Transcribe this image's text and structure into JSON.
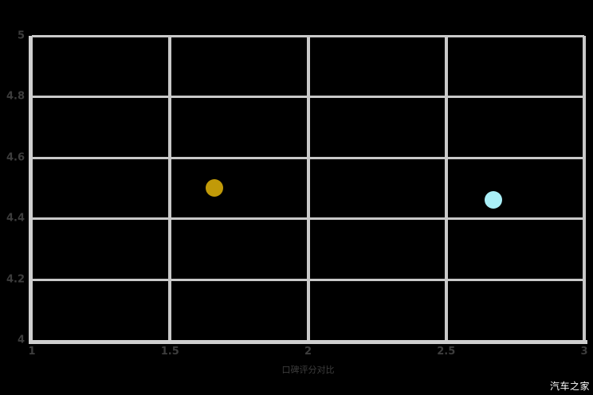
{
  "chart_data": {
    "type": "scatter",
    "title": "",
    "xlabel": "口碑评分对比",
    "ylabel": "",
    "xlim": [
      1,
      3
    ],
    "ylim": [
      4,
      5
    ],
    "grid": true,
    "legend": "none",
    "xticks": [
      {
        "value": 1,
        "label": "1"
      },
      {
        "value": 1.5,
        "label": "1.5"
      },
      {
        "value": 2,
        "label": "2"
      },
      {
        "value": 2.5,
        "label": "2.5"
      },
      {
        "value": 3,
        "label": "3"
      }
    ],
    "yticks": [
      {
        "value": 5,
        "label": "5"
      },
      {
        "value": 4.8,
        "label": "4.8"
      },
      {
        "value": 4.6,
        "label": "4.6"
      },
      {
        "value": 4.4,
        "label": "4.4"
      },
      {
        "value": 4.2,
        "label": "4.2"
      },
      {
        "value": 4,
        "label": "4"
      }
    ],
    "series": [
      {
        "name": "gold",
        "color": "#c19a08",
        "points": [
          {
            "x": 1.66,
            "y": 4.5
          }
        ]
      },
      {
        "name": "blue",
        "color": "#a9eff7",
        "points": [
          {
            "x": 2.67,
            "y": 4.46
          }
        ]
      }
    ]
  },
  "watermark": {
    "text": "汽车之家"
  },
  "colors": {
    "background": "#000000",
    "grid": "#c9c9c9",
    "axis": "#cfcfcf",
    "tick_label": "#3d3d3d",
    "watermark": "#ffffff"
  }
}
